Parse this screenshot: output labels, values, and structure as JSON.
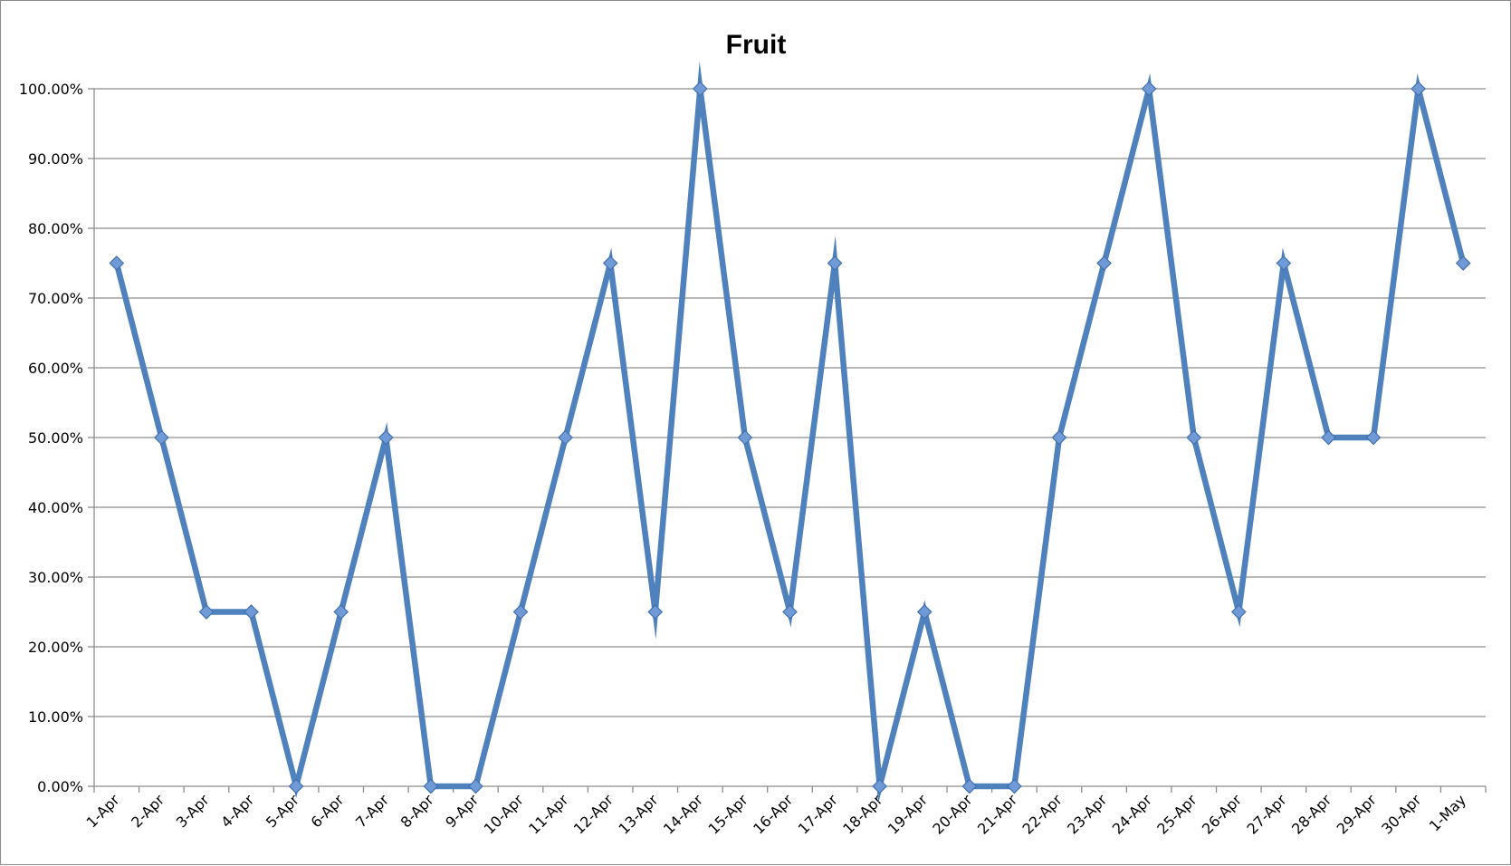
{
  "colors": {
    "series": "#4f81bd",
    "marker_fill": "#6f9ad6",
    "marker_stroke": "#3f6fb0",
    "grid": "#8e8e8e"
  },
  "chart_data": {
    "type": "line",
    "title": "Fruit",
    "xlabel": "",
    "ylabel": "",
    "ylim": [
      0,
      100
    ],
    "y_ticks": [
      "0.00%",
      "10.00%",
      "20.00%",
      "30.00%",
      "40.00%",
      "50.00%",
      "60.00%",
      "70.00%",
      "80.00%",
      "90.00%",
      "100.00%"
    ],
    "y_tick_values": [
      0,
      10,
      20,
      30,
      40,
      50,
      60,
      70,
      80,
      90,
      100
    ],
    "grid": true,
    "legend": "none",
    "marker": "diamond",
    "categories": [
      "1-Apr",
      "2-Apr",
      "3-Apr",
      "4-Apr",
      "5-Apr",
      "6-Apr",
      "7-Apr",
      "8-Apr",
      "9-Apr",
      "10-Apr",
      "11-Apr",
      "12-Apr",
      "13-Apr",
      "14-Apr",
      "15-Apr",
      "16-Apr",
      "17-Apr",
      "18-Apr",
      "19-Apr",
      "20-Apr",
      "21-Apr",
      "22-Apr",
      "23-Apr",
      "24-Apr",
      "25-Apr",
      "26-Apr",
      "27-Apr",
      "28-Apr",
      "29-Apr",
      "30-Apr",
      "1-May"
    ],
    "series": [
      {
        "values": [
          75,
          50,
          25,
          25,
          0,
          25,
          50,
          0,
          0,
          25,
          50,
          75,
          25,
          100,
          50,
          25,
          75,
          0,
          25,
          0,
          0,
          50,
          75,
          100,
          50,
          25,
          75,
          50,
          50,
          100,
          75
        ]
      }
    ]
  }
}
